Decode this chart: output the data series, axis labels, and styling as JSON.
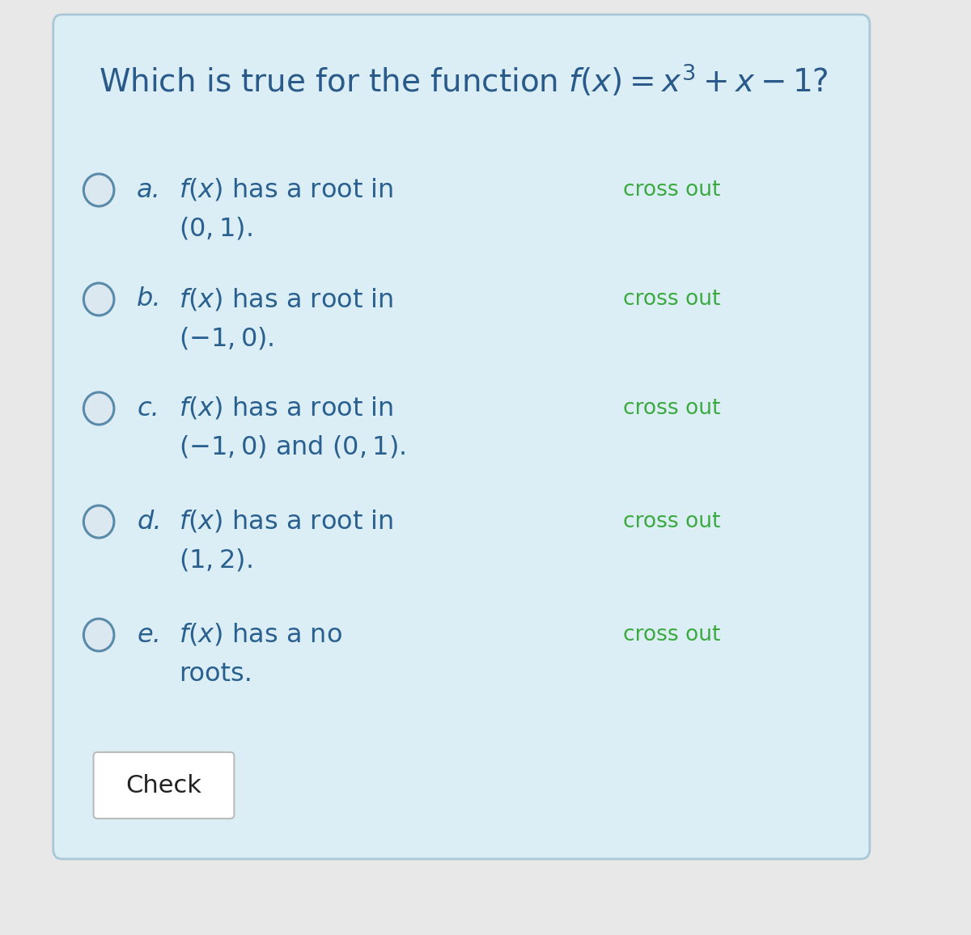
{
  "bg_outer": "#e8e8e8",
  "bg_card": "#dbeef5",
  "bg_card_border": "#a8c8d8",
  "title_text": "Which is true for the function $f(x) = x^3 + x - 1$?",
  "title_color": "#2a5a8a",
  "title_fontsize": 28,
  "options": [
    {
      "letter": "a.",
      "line1": "$f(x)$ has a root in",
      "line2": "$(0, 1)$."
    },
    {
      "letter": "b.",
      "line1": "$f(x)$ has a root in",
      "line2": "$(-1, 0)$."
    },
    {
      "letter": "c.",
      "line1": "$f(x)$ has a root in",
      "line2": "$(-1, 0)$ and $(0, 1)$."
    },
    {
      "letter": "d.",
      "line1": "$f(x)$ has a root in",
      "line2": "$(1, 2)$."
    },
    {
      "letter": "e.",
      "line1": "$f(x)$ has a no",
      "line2": "roots."
    }
  ],
  "option_text_color": "#2a6090",
  "crossout_text": "cross out",
  "crossout_color": "#3aaa40",
  "crossout_fontsize": 19,
  "option_fontsize": 23,
  "letter_fontsize": 23,
  "circle_color": "#5a8aaa",
  "circle_fill": "#dce8f0",
  "check_button_text": "Check",
  "check_button_color": "#ffffff",
  "check_button_border": "#bbbbbb"
}
